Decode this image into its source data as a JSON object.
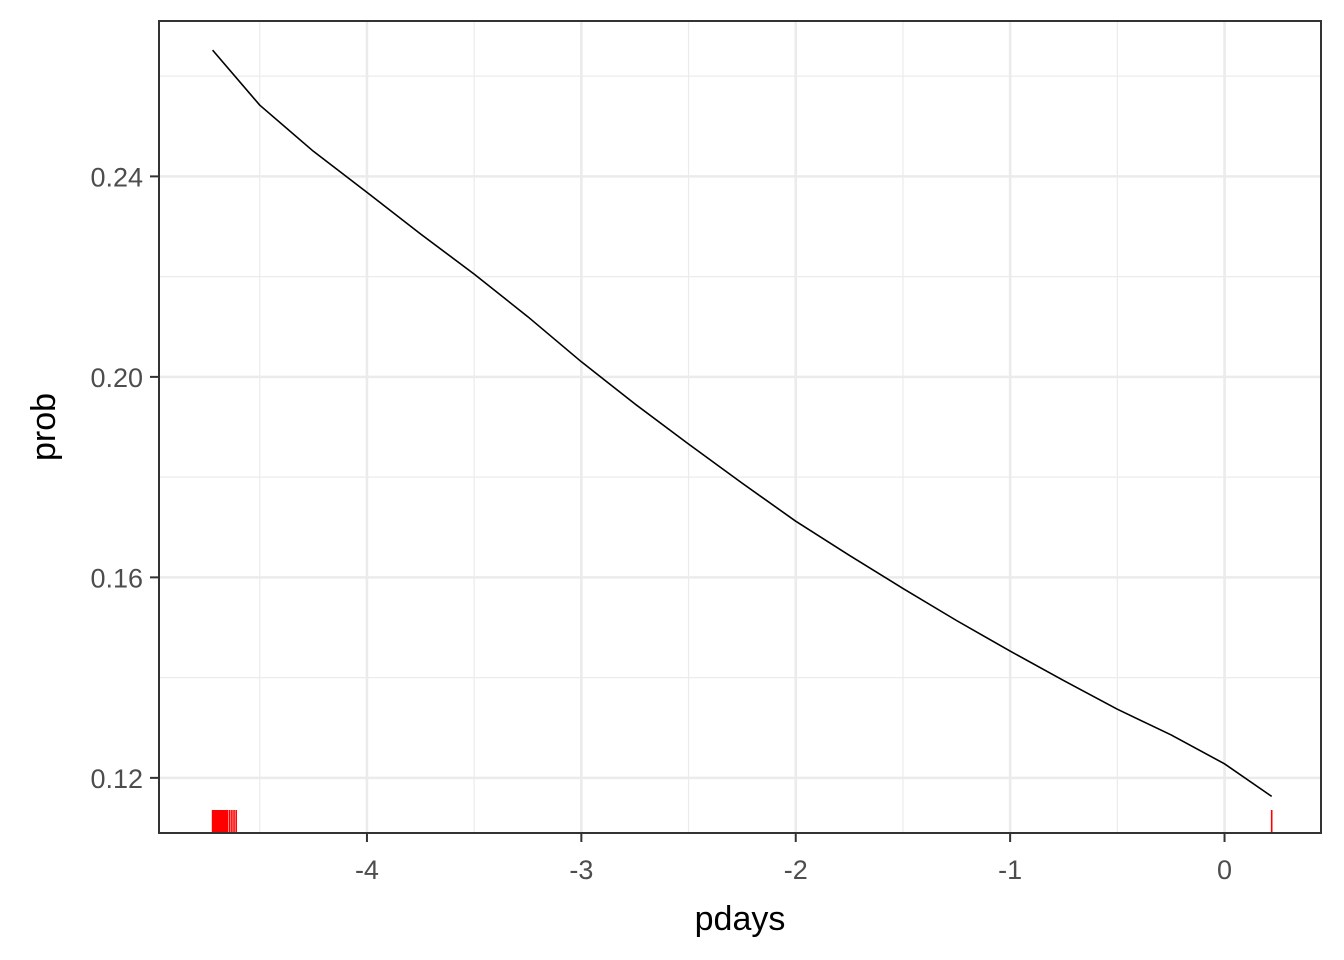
{
  "chart_data": {
    "type": "line",
    "title": "",
    "xlabel": "pdays",
    "ylabel": "prob",
    "xlim": [
      -4.97,
      0.45
    ],
    "ylim": [
      0.109,
      0.271
    ],
    "x_ticks": [
      -4,
      -3,
      -2,
      -1,
      0
    ],
    "x_tick_labels": [
      "-4",
      "-3",
      "-2",
      "-1",
      "0"
    ],
    "y_ticks": [
      0.12,
      0.16,
      0.2,
      0.24
    ],
    "y_tick_labels": [
      "0.12",
      "0.16",
      "0.20",
      "0.24"
    ],
    "grid": true,
    "legend": "none",
    "series": [
      {
        "color": "#000000",
        "x": [
          -4.72,
          -4.5,
          -4.25,
          -4.0,
          -3.75,
          -3.5,
          -3.25,
          -3.0,
          -2.75,
          -2.5,
          -2.25,
          -2.0,
          -1.75,
          -1.5,
          -1.25,
          -1.0,
          -0.75,
          -0.5,
          -0.25,
          0.0,
          0.22
        ],
        "y": [
          0.2652,
          0.2542,
          0.245,
          0.2368,
          0.2285,
          0.2205,
          0.212,
          0.203,
          0.1946,
          0.1866,
          0.1788,
          0.1712,
          0.1644,
          0.1578,
          0.1514,
          0.1453,
          0.1394,
          0.1337,
          0.1286,
          0.1228,
          0.1163
        ]
      }
    ],
    "rug": {
      "color": "#ff0000",
      "x": [
        -4.72,
        -4.715,
        -4.71,
        -4.705,
        -4.7,
        -4.695,
        -4.69,
        -4.685,
        -4.68,
        -4.675,
        -4.67,
        -4.665,
        -4.66,
        -4.655,
        -4.65,
        -4.64,
        -4.63,
        -4.62,
        -4.61,
        0.22
      ]
    }
  }
}
